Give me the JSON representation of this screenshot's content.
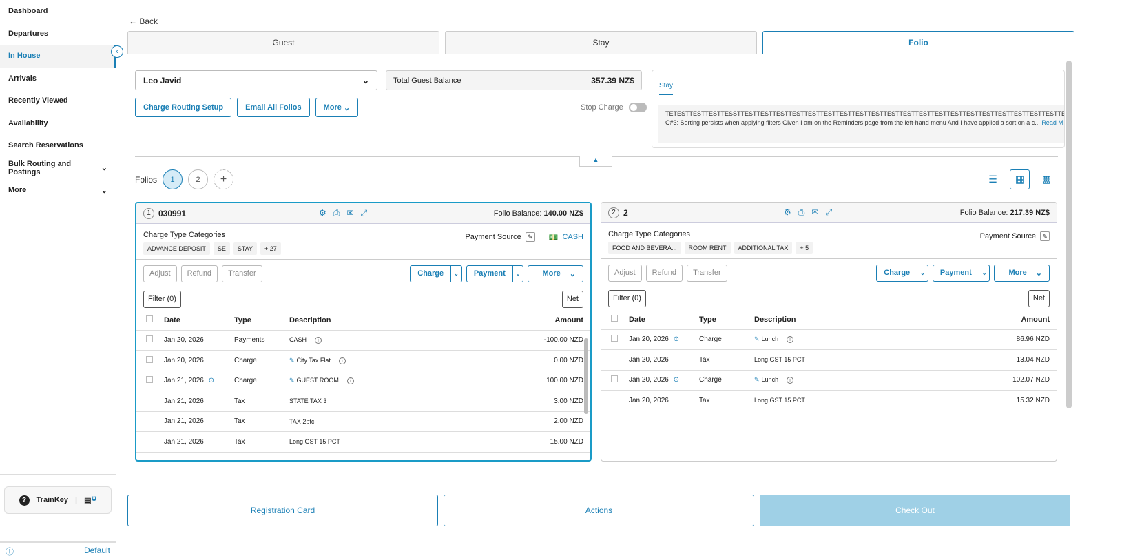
{
  "sidebar": {
    "items": [
      {
        "label": "Dashboard"
      },
      {
        "label": "Departures"
      },
      {
        "label": "In House",
        "active": true
      },
      {
        "label": "Arrivals"
      },
      {
        "label": "Recently Viewed"
      },
      {
        "label": "Availability"
      },
      {
        "label": "Search Reservations"
      },
      {
        "label": "Bulk Routing and Postings",
        "expand": true
      },
      {
        "label": "More",
        "expand": true
      }
    ],
    "trainkey": "TrainKey",
    "chat_count": "0",
    "footer": "Default"
  },
  "back": "Back",
  "tabs": [
    "Guest",
    "Stay",
    "Folio"
  ],
  "guest": "Leo Javid",
  "balance": {
    "label": "Total Guest Balance",
    "value": "357.39 NZ$"
  },
  "buttons": {
    "routing": "Charge Routing Setup",
    "email": "Email All Folios",
    "more": "More"
  },
  "stop_charge": "Stop Charge",
  "notes": {
    "tab": "Stay",
    "line1": "TETESTTESTTESTTESSTTESTTESTTESTTESTTESTTESTTESTTESTTESTTESTTESTTESTTESTTESTTESTTESTTESTTESTTESTTESTTESTTESTTESTTEST",
    "line2": "C#3: Sorting persists when applying filters Given I am on the Reminders page from the left-hand menu And I have applied a sort on a c...",
    "read_more": "Read M"
  },
  "folios_label": "Folios",
  "folio_tabs": [
    "1",
    "2"
  ],
  "cards": [
    {
      "num": "1",
      "name": "030991",
      "balance_label": "Folio Balance:",
      "balance": "140.00 NZ$",
      "cat_label": "Charge Type Categories",
      "chips": [
        "ADVANCE DEPOSIT",
        "SE",
        "STAY",
        "+ 27"
      ],
      "payment_source": "Payment Source",
      "payment": "CASH",
      "rows": [
        {
          "cb": true,
          "date": "Jan 20, 2026",
          "type": "Payments",
          "desc": "CASH",
          "info": true,
          "amount": "-100.00 NZD"
        },
        {
          "cb": true,
          "date": "Jan 20, 2026",
          "type": "Charge",
          "desc": "City Tax Flat",
          "link": true,
          "info": true,
          "amount": "0.00 NZD"
        },
        {
          "cb": true,
          "date": "Jan 21, 2026",
          "routed": true,
          "type": "Charge",
          "desc": "GUEST ROOM",
          "link": true,
          "info": true,
          "amount": "100.00 NZD"
        },
        {
          "date": "Jan 21, 2026",
          "type": "Tax",
          "desc": "STATE TAX 3",
          "amount": "3.00 NZD"
        },
        {
          "date": "Jan 21, 2026",
          "type": "Tax",
          "desc": "TAX 2ptc",
          "amount": "2.00 NZD"
        },
        {
          "date": "Jan 21, 2026",
          "type": "Tax",
          "desc": "Long GST 15 PCT",
          "amount": "15.00 NZD"
        }
      ]
    },
    {
      "num": "2",
      "name": "2",
      "balance_label": "Folio Balance:",
      "balance": "217.39 NZ$",
      "cat_label": "Charge Type Categories",
      "chips": [
        "FOOD AND BEVERA...",
        "ROOM RENT",
        "ADDITIONAL TAX",
        "+ 5"
      ],
      "payment_source": "Payment Source",
      "payment": "",
      "rows": [
        {
          "cb": true,
          "date": "Jan 20, 2026",
          "routed": true,
          "type": "Charge",
          "desc": "Lunch",
          "link": true,
          "info": true,
          "amount": "86.96 NZD"
        },
        {
          "date": "Jan 20, 2026",
          "type": "Tax",
          "desc": "Long GST 15 PCT",
          "amount": "13.04 NZD"
        },
        {
          "cb": true,
          "date": "Jan 20, 2026",
          "routed": true,
          "type": "Charge",
          "desc": "Lunch",
          "link": true,
          "info": true,
          "amount": "102.07 NZD"
        },
        {
          "date": "Jan 20, 2026",
          "type": "Tax",
          "desc": "Long GST 15 PCT",
          "amount": "15.32 NZD"
        }
      ]
    }
  ],
  "card_actions": {
    "adjust": "Adjust",
    "refund": "Refund",
    "transfer": "Transfer",
    "charge": "Charge",
    "payment": "Payment",
    "more": "More",
    "filter": "Filter (0)",
    "net": "Net"
  },
  "columns": {
    "date": "Date",
    "type": "Type",
    "description": "Description",
    "amount": "Amount"
  },
  "footer_buttons": {
    "registration": "Registration Card",
    "actions": "Actions",
    "checkout": "Check Out"
  },
  "colors": {
    "accent": "#1a7fb5",
    "checkout_disabled": "#9fd0e6"
  }
}
